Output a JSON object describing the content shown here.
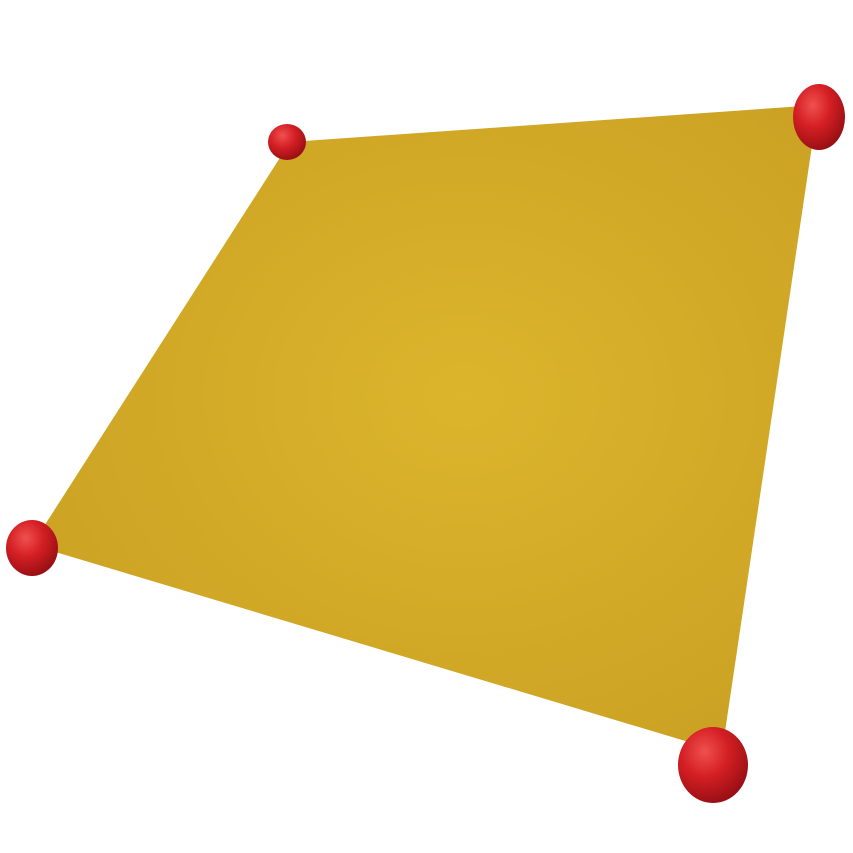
{
  "scene": {
    "background": "#ffffff",
    "face": {
      "shape": "quadrilateral",
      "color": "#d4ab2a",
      "highlight_color": "#dcb52c",
      "edge_color": "#c99f22"
    },
    "vertices": {
      "count": 4,
      "shape": "sphere",
      "color": "#d41f24",
      "highlight_color": "#f05050",
      "shadow_color": "#8f0d12"
    }
  }
}
